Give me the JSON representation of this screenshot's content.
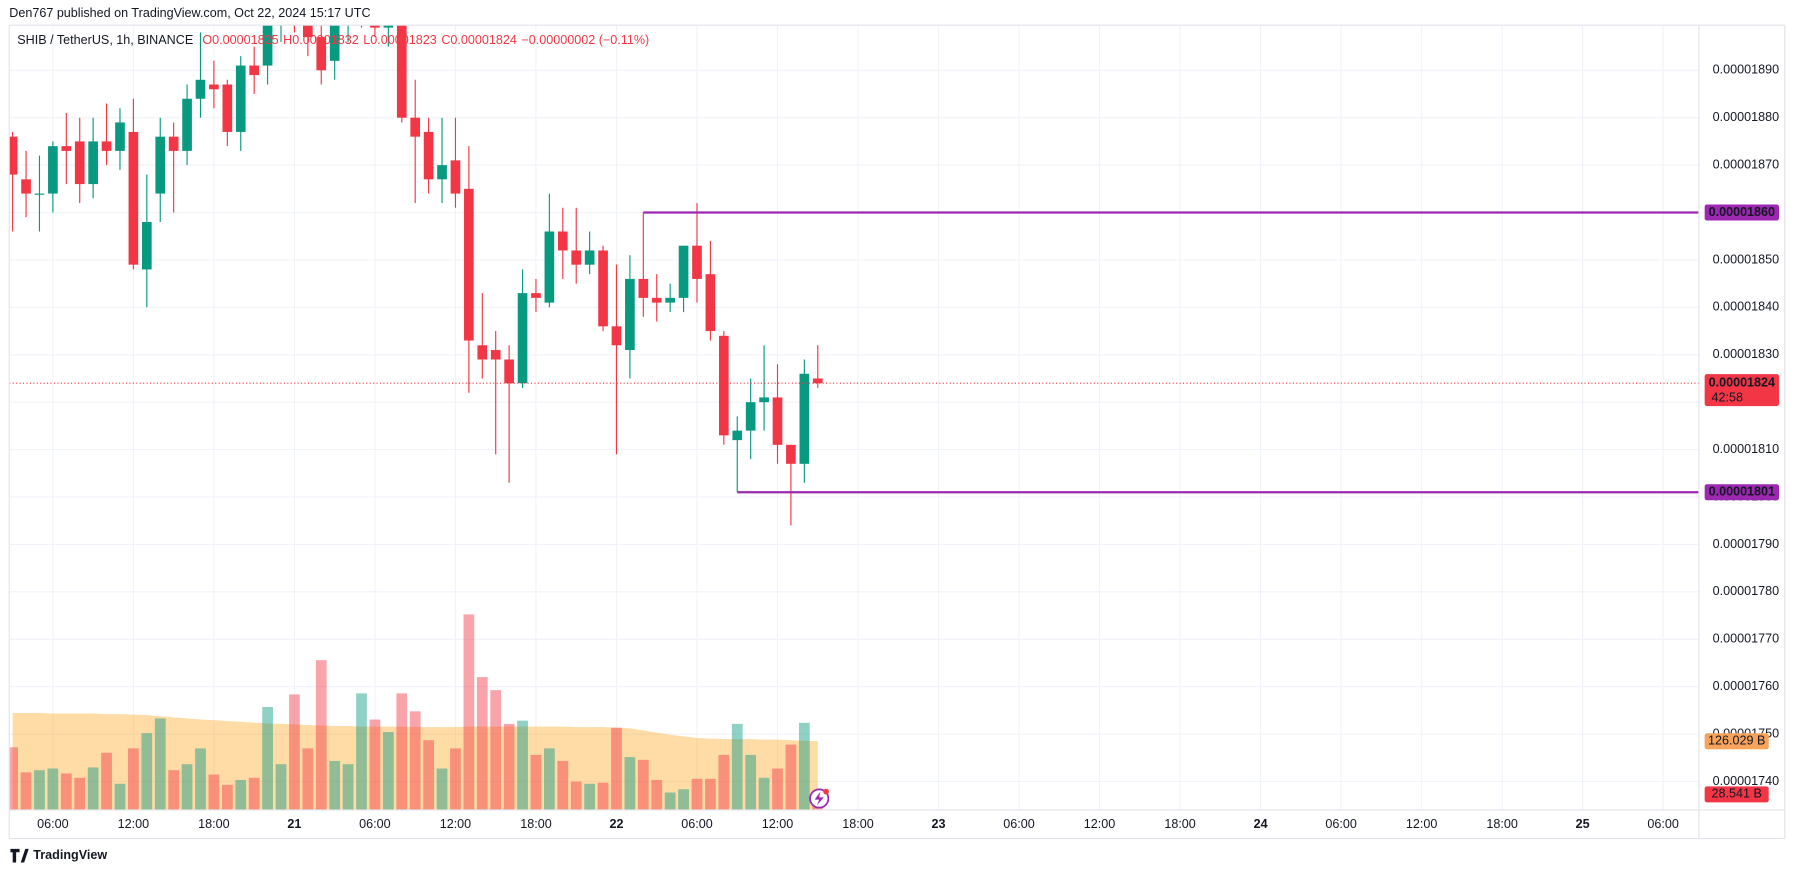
{
  "chart_data": {
    "type": "candlestick",
    "title": "Den767 published on TradingView.com, Oct 22, 2024 15:17 UTC",
    "brand": "TradingView",
    "legend": {
      "symbol": "SHIB / TetherUS, 1h, BINANCE",
      "ohlc": [
        "O0.00001825",
        "H0.00001832",
        "L0.00001823",
        "C0.00001824"
      ],
      "change": "−0.00000002 (−0.11%)"
    },
    "up_color": "#089981",
    "down_color": "#f23645",
    "grid": true,
    "x": [
      "2024-10-20 03:00",
      "2024-10-20 04:00",
      "2024-10-20 05:00",
      "2024-10-20 06:00",
      "2024-10-20 07:00",
      "2024-10-20 08:00",
      "2024-10-20 09:00",
      "2024-10-20 10:00",
      "2024-10-20 11:00",
      "2024-10-20 12:00",
      "2024-10-20 13:00",
      "2024-10-20 14:00",
      "2024-10-20 15:00",
      "2024-10-20 16:00",
      "2024-10-20 17:00",
      "2024-10-20 18:00",
      "2024-10-20 19:00",
      "2024-10-20 20:00",
      "2024-10-20 21:00",
      "2024-10-20 22:00",
      "2024-10-20 23:00",
      "2024-10-21 00:00",
      "2024-10-21 01:00",
      "2024-10-21 02:00",
      "2024-10-21 03:00",
      "2024-10-21 04:00",
      "2024-10-21 05:00",
      "2024-10-21 06:00",
      "2024-10-21 07:00",
      "2024-10-21 08:00",
      "2024-10-21 09:00",
      "2024-10-21 10:00",
      "2024-10-21 11:00",
      "2024-10-21 12:00",
      "2024-10-21 13:00",
      "2024-10-21 14:00",
      "2024-10-21 15:00",
      "2024-10-21 16:00",
      "2024-10-21 17:00",
      "2024-10-21 18:00",
      "2024-10-21 19:00",
      "2024-10-21 20:00",
      "2024-10-21 21:00",
      "2024-10-21 22:00",
      "2024-10-21 23:00",
      "2024-10-22 00:00",
      "2024-10-22 01:00",
      "2024-10-22 02:00",
      "2024-10-22 03:00",
      "2024-10-22 04:00",
      "2024-10-22 05:00",
      "2024-10-22 06:00",
      "2024-10-22 07:00",
      "2024-10-22 08:00",
      "2024-10-22 09:00",
      "2024-10-22 10:00",
      "2024-10-22 11:00",
      "2024-10-22 12:00",
      "2024-10-22 13:00",
      "2024-10-22 14:00",
      "2024-10-22 15:00"
    ],
    "open": [
      1.876e-05,
      1.867e-05,
      1.864e-05,
      1.864e-05,
      1.874e-05,
      1.875e-05,
      1.866e-05,
      1.875e-05,
      1.873e-05,
      1.877e-05,
      1.848e-05,
      1.864e-05,
      1.876e-05,
      1.873e-05,
      1.884e-05,
      1.887e-05,
      1.887e-05,
      1.877e-05,
      1.891e-05,
      1.891e-05,
      1.9e-05,
      1.904e-05,
      1.901e-05,
      1.897e-05,
      1.892e-05,
      1.9e-05,
      1.903e-05,
      1.905e-05,
      1.899e-05,
      1.9e-05,
      1.88e-05,
      1.877e-05,
      1.867e-05,
      1.871e-05,
      1.865e-05,
      1.832e-05,
      1.831e-05,
      1.829e-05,
      1.824e-05,
      1.843e-05,
      1.841e-05,
      1.856e-05,
      1.852e-05,
      1.849e-05,
      1.852e-05,
      1.836e-05,
      1.831e-05,
      1.846e-05,
      1.842e-05,
      1.841e-05,
      1.842e-05,
      1.853e-05,
      1.847e-05,
      1.834e-05,
      1.812e-05,
      1.814e-05,
      1.82e-05,
      1.821e-05,
      1.811e-05,
      1.807e-05,
      1.825e-05
    ],
    "high": [
      1.877e-05,
      1.873e-05,
      1.872e-05,
      1.875e-05,
      1.881e-05,
      1.88e-05,
      1.88e-05,
      1.883e-05,
      1.882e-05,
      1.884e-05,
      1.868e-05,
      1.88e-05,
      1.879e-05,
      1.887e-05,
      1.898e-05,
      1.892e-05,
      1.888e-05,
      1.893e-05,
      1.895e-05,
      1.905e-05,
      1.908e-05,
      1.91e-05,
      1.906e-05,
      1.9e-05,
      1.903e-05,
      1.906e-05,
      1.908e-05,
      1.907e-05,
      1.904e-05,
      1.904e-05,
      1.888e-05,
      1.88e-05,
      1.88e-05,
      1.88e-05,
      1.874e-05,
      1.843e-05,
      1.835e-05,
      1.832e-05,
      1.848e-05,
      1.846e-05,
      1.864e-05,
      1.861e-05,
      1.861e-05,
      1.856e-05,
      1.853e-05,
      1.849e-05,
      1.851e-05,
      1.86e-05,
      1.847e-05,
      1.845e-05,
      1.853e-05,
      1.862e-05,
      1.854e-05,
      1.835e-05,
      1.817e-05,
      1.825e-05,
      1.832e-05,
      1.828e-05,
      1.811e-05,
      1.829e-05,
      1.832e-05
    ],
    "low": [
      1.856e-05,
      1.859e-05,
      1.856e-05,
      1.86e-05,
      1.866e-05,
      1.862e-05,
      1.863e-05,
      1.87e-05,
      1.869e-05,
      1.848e-05,
      1.84e-05,
      1.858e-05,
      1.86e-05,
      1.87e-05,
      1.88e-05,
      1.882e-05,
      1.874e-05,
      1.873e-05,
      1.885e-05,
      1.887e-05,
      1.896e-05,
      1.898e-05,
      1.893e-05,
      1.887e-05,
      1.888e-05,
      1.896e-05,
      1.899e-05,
      1.897e-05,
      1.895e-05,
      1.879e-05,
      1.862e-05,
      1.864e-05,
      1.862e-05,
      1.861e-05,
      1.822e-05,
      1.825e-05,
      1.809e-05,
      1.803e-05,
      1.823e-05,
      1.839e-05,
      1.84e-05,
      1.846e-05,
      1.845e-05,
      1.847e-05,
      1.835e-05,
      1.809e-05,
      1.825e-05,
      1.838e-05,
      1.837e-05,
      1.839e-05,
      1.839e-05,
      1.841e-05,
      1.833e-05,
      1.811e-05,
      1.801e-05,
      1.808e-05,
      1.814e-05,
      1.807e-05,
      1.794e-05,
      1.803e-05,
      1.823e-05
    ],
    "close": [
      1.868e-05,
      1.864e-05,
      1.864e-05,
      1.874e-05,
      1.873e-05,
      1.866e-05,
      1.875e-05,
      1.873e-05,
      1.879e-05,
      1.849e-05,
      1.858e-05,
      1.876e-05,
      1.873e-05,
      1.884e-05,
      1.888e-05,
      1.886e-05,
      1.877e-05,
      1.891e-05,
      1.889e-05,
      1.9e-05,
      1.904e-05,
      1.901e-05,
      1.897e-05,
      1.89e-05,
      1.9e-05,
      1.903e-05,
      1.905e-05,
      1.899e-05,
      1.9e-05,
      1.88e-05,
      1.876e-05,
      1.867e-05,
      1.87e-05,
      1.864e-05,
      1.833e-05,
      1.829e-05,
      1.829e-05,
      1.824e-05,
      1.843e-05,
      1.842e-05,
      1.856e-05,
      1.852e-05,
      1.849e-05,
      1.852e-05,
      1.836e-05,
      1.832e-05,
      1.846e-05,
      1.842e-05,
      1.841e-05,
      1.842e-05,
      1.853e-05,
      1.846e-05,
      1.835e-05,
      1.813e-05,
      1.814e-05,
      1.82e-05,
      1.821e-05,
      1.811e-05,
      1.807e-05,
      1.826e-05,
      1.824e-05
    ],
    "volume": {
      "values": [
        115,
        69,
        73,
        76,
        67,
        59,
        78,
        105,
        48,
        113,
        141,
        168,
        73,
        84,
        113,
        65,
        46,
        55,
        59,
        189,
        84,
        212,
        113,
        275,
        90,
        84,
        214,
        166,
        143,
        214,
        181,
        128,
        76,
        113,
        359,
        244,
        220,
        158,
        164,
        101,
        113,
        90,
        52,
        48,
        50,
        151,
        97,
        92,
        55,
        32,
        38,
        57,
        57,
        101,
        158,
        101,
        59,
        76,
        120,
        160,
        28.541
      ],
      "value_labels": {
        "60": "28.541 B"
      }
    },
    "volume_ma": {
      "color": "#ff9800",
      "values": [
        178,
        178,
        178,
        177,
        177,
        177,
        177,
        176,
        176,
        175,
        174,
        172,
        170,
        168,
        166,
        165,
        163,
        162,
        160,
        159,
        158,
        157,
        156,
        155,
        154,
        154,
        153,
        153,
        153,
        153,
        152,
        152,
        152,
        152,
        153,
        153,
        153,
        153,
        153,
        153,
        153,
        153,
        152,
        152,
        152,
        151,
        150,
        146,
        142,
        138,
        135,
        132,
        131,
        130,
        130,
        130,
        129,
        129,
        128,
        127,
        126.029
      ],
      "value_labels": {
        "60": "126.029 B"
      }
    },
    "xlim": [
      "2024-10-20 02:45",
      "2024-10-25 08:40"
    ],
    "xticks": [
      {
        "value": "2024-10-20 06:00",
        "label": "06:00"
      },
      {
        "value": "2024-10-20 12:00",
        "label": "12:00"
      },
      {
        "value": "2024-10-20 18:00",
        "label": "18:00"
      },
      {
        "value": "2024-10-21 00:00",
        "label": "21"
      },
      {
        "value": "2024-10-21 06:00",
        "label": "06:00"
      },
      {
        "value": "2024-10-21 12:00",
        "label": "12:00"
      },
      {
        "value": "2024-10-21 18:00",
        "label": "18:00"
      },
      {
        "value": "2024-10-22 00:00",
        "label": "22"
      },
      {
        "value": "2024-10-22 06:00",
        "label": "06:00"
      },
      {
        "value": "2024-10-22 12:00",
        "label": "12:00"
      },
      {
        "value": "2024-10-22 18:00",
        "label": "18:00"
      },
      {
        "value": "2024-10-23 00:00",
        "label": "23"
      },
      {
        "value": "2024-10-23 06:00",
        "label": "06:00"
      },
      {
        "value": "2024-10-23 12:00",
        "label": "12:00"
      },
      {
        "value": "2024-10-23 18:00",
        "label": "18:00"
      },
      {
        "value": "2024-10-24 00:00",
        "label": "24"
      },
      {
        "value": "2024-10-24 06:00",
        "label": "06:00"
      },
      {
        "value": "2024-10-24 12:00",
        "label": "12:00"
      },
      {
        "value": "2024-10-24 18:00",
        "label": "18:00"
      },
      {
        "value": "2024-10-25 00:00",
        "label": "25"
      },
      {
        "value": "2024-10-25 06:00",
        "label": "06:00"
      }
    ],
    "ylim": [
      1.734e-05,
      1.9e-05
    ],
    "yticks": [
      {
        "value": 1.74e-05,
        "label": "0.00001740"
      },
      {
        "value": 1.75e-05,
        "label": "0.00001750"
      },
      {
        "value": 1.76e-05,
        "label": "0.00001760"
      },
      {
        "value": 1.77e-05,
        "label": "0.00001770"
      },
      {
        "value": 1.78e-05,
        "label": "0.00001780"
      },
      {
        "value": 1.79e-05,
        "label": "0.00001790"
      },
      {
        "value": 1.8e-05,
        "label": "0.00001800"
      },
      {
        "value": 1.81e-05,
        "label": "0.00001810"
      },
      {
        "value": 1.82e-05,
        "label": "0.00001820"
      },
      {
        "value": 1.83e-05,
        "label": "0.00001830"
      },
      {
        "value": 1.84e-05,
        "label": "0.00001840"
      },
      {
        "value": 1.85e-05,
        "label": "0.00001850"
      },
      {
        "value": 1.86e-05,
        "label": "0.00001860"
      },
      {
        "value": 1.87e-05,
        "label": "0.00001870"
      },
      {
        "value": 1.88e-05,
        "label": "0.00001880"
      },
      {
        "value": 1.89e-05,
        "label": "0.00001890"
      }
    ],
    "y2lim": [
      0,
      1445
    ],
    "hlines": [
      {
        "value": 1.86e-05,
        "label": "0.00001860",
        "start": "2024-10-22 02:00",
        "color": "#9c27b0"
      },
      {
        "value": 1.801e-05,
        "label": "0.00001801",
        "start": "2024-10-22 09:00",
        "color": "#9c27b0"
      }
    ],
    "last_price": {
      "value": 1.824e-05,
      "label": "0.00001824",
      "countdown": "42:58",
      "color": "#f23645"
    }
  }
}
